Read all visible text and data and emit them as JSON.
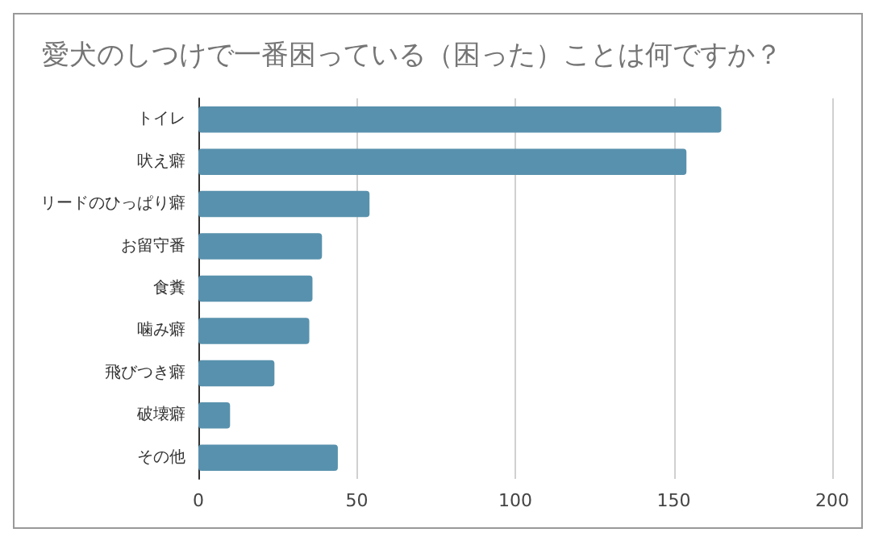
{
  "chart_data": {
    "type": "bar",
    "orientation": "horizontal",
    "title": "愛犬のしつけで一番困っている（困った）ことは何ですか？",
    "categories": [
      "トイレ",
      "吠え癖",
      "リードのひっぱり癖",
      "お留守番",
      "食糞",
      "噛み癖",
      "飛びつき癖",
      "破壊癖",
      "その他"
    ],
    "values": [
      165,
      154,
      54,
      39,
      36,
      35,
      24,
      10,
      44
    ],
    "color": "#5891ad",
    "xlim": [
      0,
      200
    ],
    "xticks": [
      0,
      50,
      100,
      150,
      200
    ],
    "grid": "x"
  }
}
